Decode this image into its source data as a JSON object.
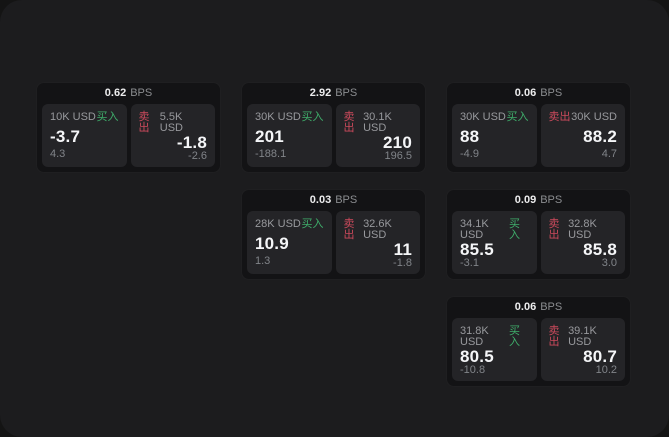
{
  "colors": {
    "buy_green": "#3fae6b",
    "sell_red": "#cc4a5c",
    "panel_bg": "#1c1c1e",
    "card_bg": "#131315",
    "quote_tile_bg": "#242427"
  },
  "cards": [
    {
      "bps": "0.62",
      "bps_unit": "BPS",
      "buy": {
        "amount": "10K USD",
        "side_label": "买入",
        "price": "-3.7",
        "delta": "4.3"
      },
      "sell": {
        "amount": "5.5K USD",
        "side_label": "卖出",
        "price": "-1.8",
        "delta": "-2.6"
      }
    },
    {
      "bps": "2.92",
      "bps_unit": "BPS",
      "buy": {
        "amount": "30K USD",
        "side_label": "买入",
        "price": "201",
        "delta": "-188.1"
      },
      "sell": {
        "amount": "30.1K USD",
        "side_label": "卖出",
        "price": "210",
        "delta": "196.5"
      }
    },
    {
      "bps": "0.06",
      "bps_unit": "BPS",
      "buy": {
        "amount": "30K USD",
        "side_label": "买入",
        "price": "88",
        "delta": "-4.9"
      },
      "sell": {
        "amount": "30K USD",
        "side_label": "卖出",
        "price": "88.2",
        "delta": "4.7"
      }
    },
    {
      "bps": "0.03",
      "bps_unit": "BPS",
      "buy": {
        "amount": "28K USD",
        "side_label": "买入",
        "price": "10.9",
        "delta": "1.3"
      },
      "sell": {
        "amount": "32.6K USD",
        "side_label": "卖出",
        "price": "11",
        "delta": "-1.8"
      }
    },
    {
      "bps": "0.09",
      "bps_unit": "BPS",
      "buy": {
        "amount": "34.1K USD",
        "side_label": "买入",
        "price": "85.5",
        "delta": "-3.1"
      },
      "sell": {
        "amount": "32.8K USD",
        "side_label": "卖出",
        "price": "85.8",
        "delta": "3.0"
      }
    },
    {
      "bps": "0.06",
      "bps_unit": "BPS",
      "buy": {
        "amount": "31.8K USD",
        "side_label": "买入",
        "price": "80.5",
        "delta": "-10.8"
      },
      "sell": {
        "amount": "39.1K USD",
        "side_label": "卖出",
        "price": "80.7",
        "delta": "10.2"
      }
    }
  ]
}
